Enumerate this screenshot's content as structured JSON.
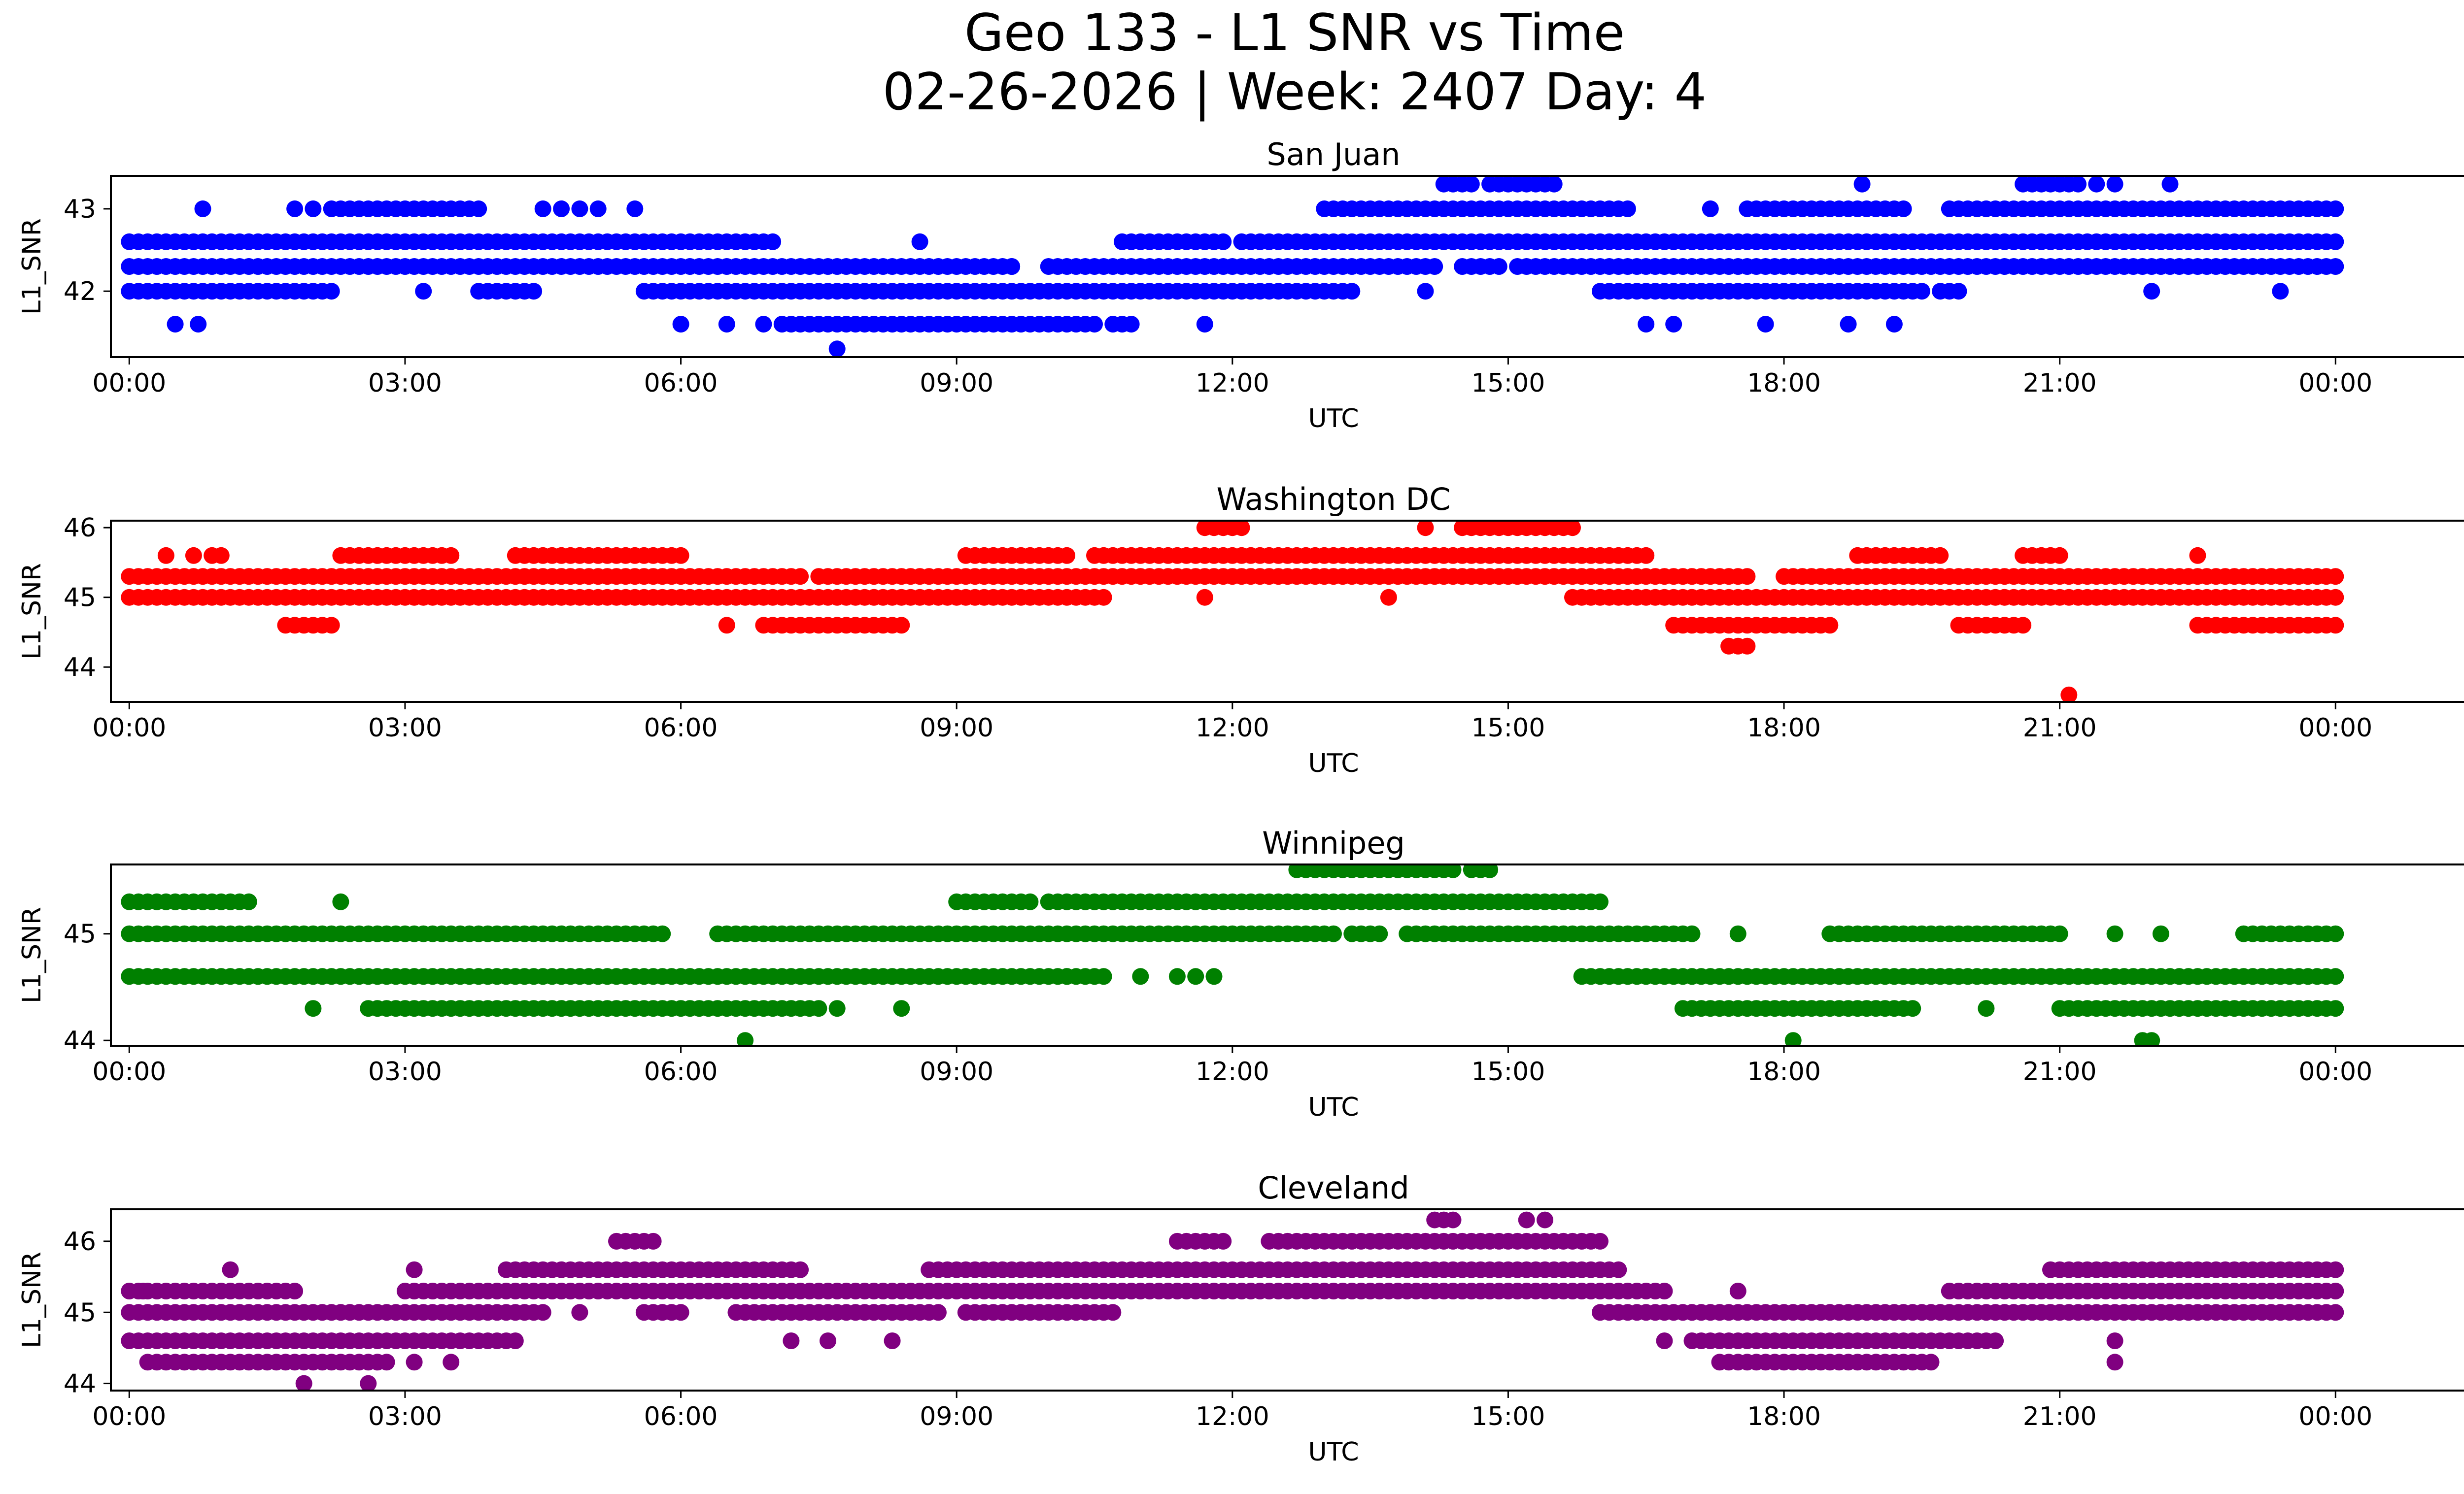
{
  "title_line1": "Geo 133 - L1 SNR vs Time",
  "title_line2": "02-26-2026 | Week: 2407 Day: 4",
  "chart_data": [
    {
      "type": "scatter",
      "title": "San Juan",
      "xlabel": "UTC",
      "ylabel": "L1_SNR",
      "color": "#0000ff",
      "xlim": [
        -0.2,
        26.4
      ],
      "ylim": [
        41.2,
        43.4
      ],
      "xticks": [
        0,
        3,
        6,
        9,
        12,
        15,
        18,
        21,
        24
      ],
      "xtick_labels": [
        "00:00",
        "03:00",
        "06:00",
        "09:00",
        "12:00",
        "15:00",
        "18:00",
        "21:00",
        "00:00"
      ],
      "yticks": [
        42,
        43
      ],
      "ytick_labels": [
        "42",
        "43"
      ],
      "bands": [
        {
          "y": 42.6,
          "ranges": [
            [
              0,
              6.7
            ],
            [
              6.8,
              7.0
            ],
            [
              10.8,
              11.6
            ],
            [
              11.7,
              11.9
            ],
            [
              12.1,
              24
            ]
          ]
        },
        {
          "y": 42.3,
          "ranges": [
            [
              0,
              9.3
            ],
            [
              9.4,
              9.6
            ],
            [
              10.0,
              14.2
            ],
            [
              14.5,
              14.9
            ],
            [
              15.1,
              15.6
            ],
            [
              15.7,
              24
            ]
          ]
        },
        {
          "y": 42.0,
          "ranges": [
            [
              0,
              2.2
            ],
            [
              3.8,
              4.4
            ],
            [
              5.6,
              12.8
            ],
            [
              12.9,
              13.3
            ],
            [
              16.0,
              19.5
            ],
            [
              19.7,
              19.9
            ]
          ]
        },
        {
          "y": 43.0,
          "ranges": [
            [
              2.2,
              3.8
            ],
            [
              13.0,
              16.3
            ],
            [
              17.6,
              19.3
            ],
            [
              19.8,
              24
            ]
          ]
        },
        {
          "y": 41.6,
          "ranges": [
            [
              7.1,
              10.5
            ],
            [
              10.7,
              10.9
            ]
          ]
        },
        {
          "y": 43.3,
          "ranges": [
            [
              14.3,
              14.6
            ],
            [
              14.8,
              15.5
            ],
            [
              20.6,
              21.2
            ]
          ]
        }
      ],
      "points": [
        [
          0.5,
          41.6
        ],
        [
          0.75,
          41.6
        ],
        [
          0.8,
          43.0
        ],
        [
          1.8,
          43.0
        ],
        [
          2.0,
          43.0
        ],
        [
          3.2,
          42.0
        ],
        [
          4.5,
          43.0
        ],
        [
          4.7,
          43.0
        ],
        [
          4.9,
          43.0
        ],
        [
          5.1,
          43.0
        ],
        [
          5.5,
          43.0
        ],
        [
          6.0,
          41.6
        ],
        [
          6.5,
          41.6
        ],
        [
          6.9,
          41.6
        ],
        [
          7.7,
          41.3
        ],
        [
          8.6,
          42.6
        ],
        [
          9.6,
          42.3
        ],
        [
          11.7,
          41.6
        ],
        [
          14.1,
          42.0
        ],
        [
          16.5,
          41.6
        ],
        [
          16.8,
          41.6
        ],
        [
          17.2,
          43.0
        ],
        [
          17.8,
          41.6
        ],
        [
          18.7,
          41.6
        ],
        [
          18.85,
          43.3
        ],
        [
          19.2,
          41.6
        ],
        [
          21.4,
          43.3
        ],
        [
          21.6,
          43.3
        ],
        [
          22.0,
          42.0
        ],
        [
          22.2,
          43.3
        ],
        [
          23.4,
          42.0
        ]
      ]
    },
    {
      "type": "scatter",
      "title": "Washington DC",
      "xlabel": "UTC",
      "ylabel": "L1_SNR",
      "color": "#ff0000",
      "xlim": [
        -0.2,
        26.4
      ],
      "ylim": [
        43.5,
        46.1
      ],
      "xticks": [
        0,
        3,
        6,
        9,
        12,
        15,
        18,
        21,
        24
      ],
      "xtick_labels": [
        "00:00",
        "03:00",
        "06:00",
        "09:00",
        "12:00",
        "15:00",
        "18:00",
        "21:00",
        "00:00"
      ],
      "yticks": [
        44,
        45,
        46
      ],
      "ytick_labels": [
        "44",
        "45",
        "46"
      ],
      "bands": [
        {
          "y": 45.3,
          "ranges": [
            [
              0,
              7.3
            ],
            [
              7.5,
              17.6
            ],
            [
              18.0,
              24
            ]
          ]
        },
        {
          "y": 45.0,
          "ranges": [
            [
              0,
              10.6
            ],
            [
              15.7,
              24
            ]
          ]
        },
        {
          "y": 45.6,
          "ranges": [
            [
              2.3,
              3.5
            ],
            [
              4.2,
              6.0
            ],
            [
              9.1,
              10.2
            ],
            [
              10.5,
              16.5
            ],
            [
              18.8,
              19.7
            ],
            [
              20.6,
              21.0
            ]
          ]
        },
        {
          "y": 44.6,
          "ranges": [
            [
              1.7,
              2.2
            ],
            [
              6.9,
              8.4
            ],
            [
              16.8,
              18.5
            ],
            [
              19.9,
              20.6
            ],
            [
              22.5,
              24
            ]
          ]
        },
        {
          "y": 46.0,
          "ranges": [
            [
              11.7,
              12.1
            ],
            [
              14.5,
              15.7
            ]
          ]
        },
        {
          "y": 44.3,
          "ranges": [
            [
              17.4,
              17.6
            ]
          ]
        }
      ],
      "points": [
        [
          0.4,
          45.6
        ],
        [
          0.7,
          45.6
        ],
        [
          0.9,
          45.6
        ],
        [
          1.0,
          45.6
        ],
        [
          6.5,
          44.6
        ],
        [
          11.7,
          45.0
        ],
        [
          13.7,
          45.0
        ],
        [
          14.1,
          46.0
        ],
        [
          21.1,
          43.6
        ],
        [
          22.5,
          45.6
        ]
      ]
    },
    {
      "type": "scatter",
      "title": "Winnipeg",
      "xlabel": "UTC",
      "ylabel": "L1_SNR",
      "color": "#008000",
      "xlim": [
        -0.2,
        26.4
      ],
      "ylim": [
        43.95,
        45.65
      ],
      "xticks": [
        0,
        3,
        6,
        9,
        12,
        15,
        18,
        21,
        24
      ],
      "xtick_labels": [
        "00:00",
        "03:00",
        "06:00",
        "09:00",
        "12:00",
        "15:00",
        "18:00",
        "21:00",
        "00:00"
      ],
      "yticks": [
        44,
        45
      ],
      "ytick_labels": [
        "44",
        "45"
      ],
      "bands": [
        {
          "y": 45.0,
          "ranges": [
            [
              0,
              5.3
            ],
            [
              5.4,
              5.8
            ],
            [
              6.4,
              13.1
            ],
            [
              13.3,
              13.6
            ],
            [
              13.9,
              17.0
            ],
            [
              18.5,
              21.0
            ],
            [
              23.0,
              24
            ]
          ]
        },
        {
          "y": 44.6,
          "ranges": [
            [
              0,
              10.4
            ],
            [
              10.5,
              10.6
            ],
            [
              15.8,
              24
            ]
          ]
        },
        {
          "y": 45.3,
          "ranges": [
            [
              0,
              1.3
            ],
            [
              9.0,
              9.8
            ],
            [
              10.0,
              16.0
            ]
          ]
        },
        {
          "y": 44.3,
          "ranges": [
            [
              2.6,
              7.5
            ],
            [
              16.9,
              19.4
            ],
            [
              21.0,
              24
            ]
          ]
        },
        {
          "y": 45.6,
          "ranges": [
            [
              12.7,
              14.4
            ],
            [
              14.6,
              14.8
            ]
          ]
        }
      ],
      "points": [
        [
          2.0,
          44.3
        ],
        [
          2.3,
          45.3
        ],
        [
          6.7,
          44.0
        ],
        [
          7.7,
          44.3
        ],
        [
          8.4,
          44.3
        ],
        [
          10.2,
          44.6
        ],
        [
          11.0,
          44.6
        ],
        [
          11.4,
          44.6
        ],
        [
          11.6,
          44.6
        ],
        [
          11.8,
          44.6
        ],
        [
          17.5,
          45.0
        ],
        [
          18.1,
          44.0
        ],
        [
          20.2,
          44.3
        ],
        [
          21.6,
          45.0
        ],
        [
          21.9,
          44.0
        ],
        [
          22.0,
          44.0
        ],
        [
          22.1,
          45.0
        ]
      ]
    },
    {
      "type": "scatter",
      "title": "Cleveland",
      "xlabel": "UTC",
      "ylabel": "L1_SNR",
      "color": "#800080",
      "xlim": [
        -0.2,
        26.4
      ],
      "ylim": [
        43.9,
        46.45
      ],
      "xticks": [
        0,
        3,
        6,
        9,
        12,
        15,
        18,
        21,
        24
      ],
      "xtick_labels": [
        "00:00",
        "03:00",
        "06:00",
        "09:00",
        "12:00",
        "15:00",
        "18:00",
        "21:00",
        "00:00"
      ],
      "yticks": [
        44,
        45,
        46
      ],
      "ytick_labels": [
        "44",
        "45",
        "46"
      ],
      "bands": [
        {
          "y": 45.0,
          "ranges": [
            [
              0,
              4.5
            ],
            [
              5.6,
              6.0
            ],
            [
              6.6,
              8.8
            ],
            [
              9.1,
              10.7
            ],
            [
              16.0,
              24
            ]
          ]
        },
        {
          "y": 45.3,
          "ranges": [
            [
              0,
              1.8
            ],
            [
              3.0,
              16.7
            ],
            [
              19.8,
              24
            ]
          ]
        },
        {
          "y": 44.6,
          "ranges": [
            [
              0,
              4.2
            ],
            [
              17.0,
              20.3
            ]
          ]
        },
        {
          "y": 45.6,
          "ranges": [
            [
              4.1,
              7.3
            ],
            [
              8.7,
              16.2
            ],
            [
              20.9,
              24
            ]
          ]
        },
        {
          "y": 44.3,
          "ranges": [
            [
              0.2,
              2.8
            ],
            [
              17.3,
              19.6
            ]
          ]
        },
        {
          "y": 46.0,
          "ranges": [
            [
              5.3,
              5.7
            ],
            [
              11.4,
              11.9
            ],
            [
              12.4,
              16.0
            ]
          ]
        },
        {
          "y": 46.3,
          "ranges": [
            [
              14.2,
              14.4
            ]
          ]
        }
      ],
      "points": [
        [
          0.15,
          45.3
        ],
        [
          1.1,
          45.6
        ],
        [
          1.9,
          44.0
        ],
        [
          2.6,
          44.0
        ],
        [
          3.1,
          45.6
        ],
        [
          3.1,
          44.3
        ],
        [
          3.5,
          44.3
        ],
        [
          4.9,
          45.0
        ],
        [
          7.2,
          44.6
        ],
        [
          7.6,
          44.6
        ],
        [
          8.3,
          44.6
        ],
        [
          15.2,
          46.3
        ],
        [
          15.4,
          46.3
        ],
        [
          16.7,
          44.6
        ],
        [
          17.5,
          45.3
        ],
        [
          21.6,
          44.6
        ],
        [
          21.6,
          44.3
        ]
      ]
    }
  ]
}
